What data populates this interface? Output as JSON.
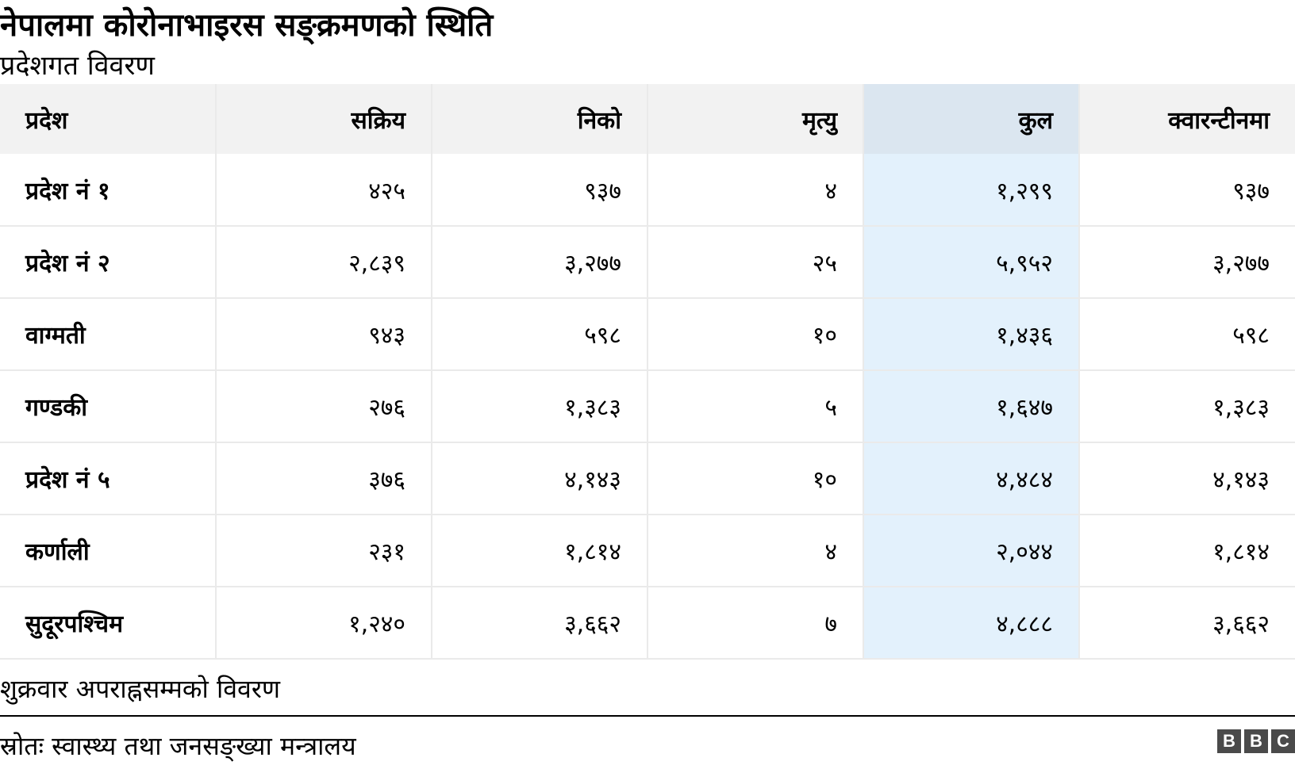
{
  "title": "नेपालमा कोरोनाभाइरस सङ्क्रमणको स्थिति",
  "subtitle": "प्रदेशगत विवरण",
  "chart_data": {
    "type": "table",
    "columns": [
      "प्रदेश",
      "सक्रिय",
      "निको",
      "मृत्यु",
      "कुल",
      "क्वारन्टीनमा"
    ],
    "highlight_column": 4,
    "rows": [
      [
        "प्रदेश नं १",
        "४२५",
        "९३७",
        "४",
        "१,२९९",
        "९३७"
      ],
      [
        "प्रदेश नं २",
        "२,८३९",
        "३,२७७",
        "२५",
        "५,९५२",
        "३,२७७"
      ],
      [
        "वाग्मती",
        "९४३",
        "५९८",
        "१०",
        "१,४३६",
        "५९८"
      ],
      [
        "गण्डकी",
        "२७६",
        "१,३८३",
        "५",
        "१,६४७",
        "१,३८३"
      ],
      [
        "प्रदेश नं ५",
        "३७६",
        "४,१४३",
        "१०",
        "४,४८४",
        "४,१४३"
      ],
      [
        "कर्णाली",
        "२३१",
        "१,८१४",
        "४",
        "२,०४४",
        "१,८१४"
      ],
      [
        "सुदूरपश्चिम",
        "१,२४०",
        "३,६६२",
        "७",
        "४,८८८",
        "३,६६२"
      ]
    ],
    "values": {
      "active": [
        425,
        2839,
        943,
        276,
        376,
        231,
        1240
      ],
      "recovered": [
        937,
        3277,
        598,
        1383,
        4143,
        1814,
        3662
      ],
      "deaths": [
        4,
        25,
        10,
        5,
        10,
        4,
        7
      ],
      "total": [
        1299,
        5952,
        1436,
        1647,
        4484,
        2044,
        4888
      ],
      "in_quarantine": [
        937,
        3277,
        598,
        1383,
        4143,
        1814,
        3662
      ]
    }
  },
  "note": "शुक्रवार अपराह्नसम्मको विवरण",
  "source": "स्रोतः स्वास्थ्य तथा जनसङ्ख्या मन्त्रालय",
  "logo": {
    "letters": [
      "B",
      "B",
      "C"
    ]
  },
  "colors": {
    "header_bg": "#f2f2f2",
    "highlight_header_bg": "#dbe6f0",
    "highlight_cell_bg": "#e3f1fc",
    "grid": "#eaeaea"
  }
}
